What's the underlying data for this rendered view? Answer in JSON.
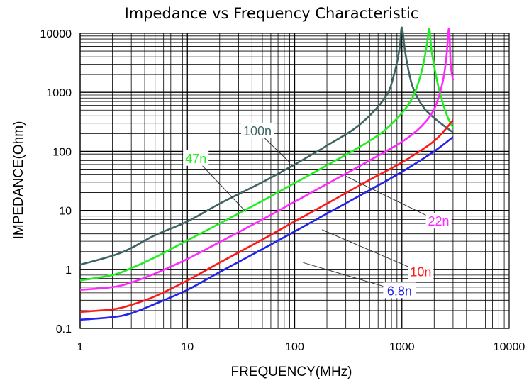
{
  "chart_data": {
    "type": "line",
    "title": "Impedance vs Frequency Characteristic",
    "xlabel": "FREQUENCY(MHz)",
    "ylabel": "IMPEDANCE(Ohm)",
    "x_scale": "log",
    "y_scale": "log",
    "xlim": [
      1,
      10000
    ],
    "ylim": [
      0.1,
      10000
    ],
    "x_ticks": [
      1,
      10,
      100,
      1000,
      10000
    ],
    "x_tick_labels": [
      "1",
      "10",
      "100",
      "1000",
      "10000"
    ],
    "y_ticks": [
      0.1,
      1,
      10,
      100,
      1000,
      10000
    ],
    "y_tick_labels": [
      "0.1",
      "1",
      "10",
      "100",
      "1000",
      "10000"
    ],
    "grid": true,
    "series": [
      {
        "name": "100n",
        "color": "#3f6464",
        "points": [
          [
            1,
            1.2
          ],
          [
            2,
            1.7
          ],
          [
            3,
            2.3
          ],
          [
            5,
            3.8
          ],
          [
            10,
            6.5
          ],
          [
            20,
            13
          ],
          [
            50,
            30
          ],
          [
            100,
            60
          ],
          [
            200,
            125
          ],
          [
            400,
            280
          ],
          [
            700,
            820
          ],
          [
            850,
            2100
          ],
          [
            950,
            5500
          ],
          [
            1000,
            12500
          ],
          [
            1080,
            4500
          ],
          [
            1250,
            1300
          ],
          [
            1600,
            550
          ],
          [
            2200,
            320
          ],
          [
            3000,
            210
          ]
        ]
      },
      {
        "name": "47n",
        "color": "#21ee21",
        "points": [
          [
            1,
            0.65
          ],
          [
            2,
            0.8
          ],
          [
            3,
            1.05
          ],
          [
            5,
            1.6
          ],
          [
            10,
            3.1
          ],
          [
            20,
            6
          ],
          [
            50,
            14.5
          ],
          [
            100,
            29
          ],
          [
            200,
            58
          ],
          [
            500,
            150
          ],
          [
            800,
            290
          ],
          [
            1200,
            700
          ],
          [
            1500,
            2000
          ],
          [
            1700,
            6000
          ],
          [
            1800,
            12000
          ],
          [
            1900,
            4800
          ],
          [
            2200,
            1200
          ],
          [
            2600,
            430
          ],
          [
            3000,
            250
          ]
        ]
      },
      {
        "name": "22n",
        "color": "#ff28ff",
        "points": [
          [
            1,
            0.45
          ],
          [
            2,
            0.5
          ],
          [
            3,
            0.6
          ],
          [
            5,
            0.85
          ],
          [
            10,
            1.5
          ],
          [
            20,
            2.9
          ],
          [
            50,
            7
          ],
          [
            100,
            14
          ],
          [
            200,
            28
          ],
          [
            500,
            70
          ],
          [
            1000,
            145
          ],
          [
            1500,
            260
          ],
          [
            2000,
            520
          ],
          [
            2400,
            1500
          ],
          [
            2600,
            4000
          ],
          [
            2750,
            12000
          ],
          [
            2850,
            3000
          ],
          [
            3000,
            1600
          ]
        ]
      },
      {
        "name": "10n",
        "color": "#ff1a1a",
        "points": [
          [
            1,
            0.19
          ],
          [
            2,
            0.21
          ],
          [
            3,
            0.25
          ],
          [
            5,
            0.35
          ],
          [
            10,
            0.65
          ],
          [
            20,
            1.3
          ],
          [
            50,
            3.2
          ],
          [
            100,
            6.5
          ],
          [
            200,
            13
          ],
          [
            500,
            33
          ],
          [
            1000,
            65
          ],
          [
            2000,
            150
          ],
          [
            3000,
            340
          ]
        ]
      },
      {
        "name": "6.8n",
        "color": "#2323ee",
        "points": [
          [
            1,
            0.14
          ],
          [
            2,
            0.155
          ],
          [
            3,
            0.18
          ],
          [
            5,
            0.26
          ],
          [
            10,
            0.45
          ],
          [
            20,
            0.9
          ],
          [
            50,
            2.2
          ],
          [
            100,
            4.4
          ],
          [
            200,
            8.8
          ],
          [
            500,
            22
          ],
          [
            1000,
            45
          ],
          [
            2000,
            100
          ],
          [
            3000,
            175
          ]
        ]
      }
    ],
    "annotations": [
      {
        "text": "100n",
        "series": "100n",
        "text_at": [
          45,
          220
        ],
        "points_to": [
          90,
          65
        ]
      },
      {
        "text": "47n",
        "series": "47n",
        "text_at": [
          12,
          75
        ],
        "points_to": [
          35,
          9.5
        ]
      },
      {
        "text": "22n",
        "series": "22n",
        "text_at": [
          2200,
          6.5
        ],
        "points_to": [
          300,
          38
        ]
      },
      {
        "text": "10n",
        "series": "10n",
        "text_at": [
          1500,
          0.9
        ],
        "points_to": [
          180,
          4.7
        ]
      },
      {
        "text": "6.8n",
        "series": "6.8n",
        "text_at": [
          950,
          0.43
        ],
        "points_to": [
          120,
          1.3
        ]
      }
    ]
  }
}
